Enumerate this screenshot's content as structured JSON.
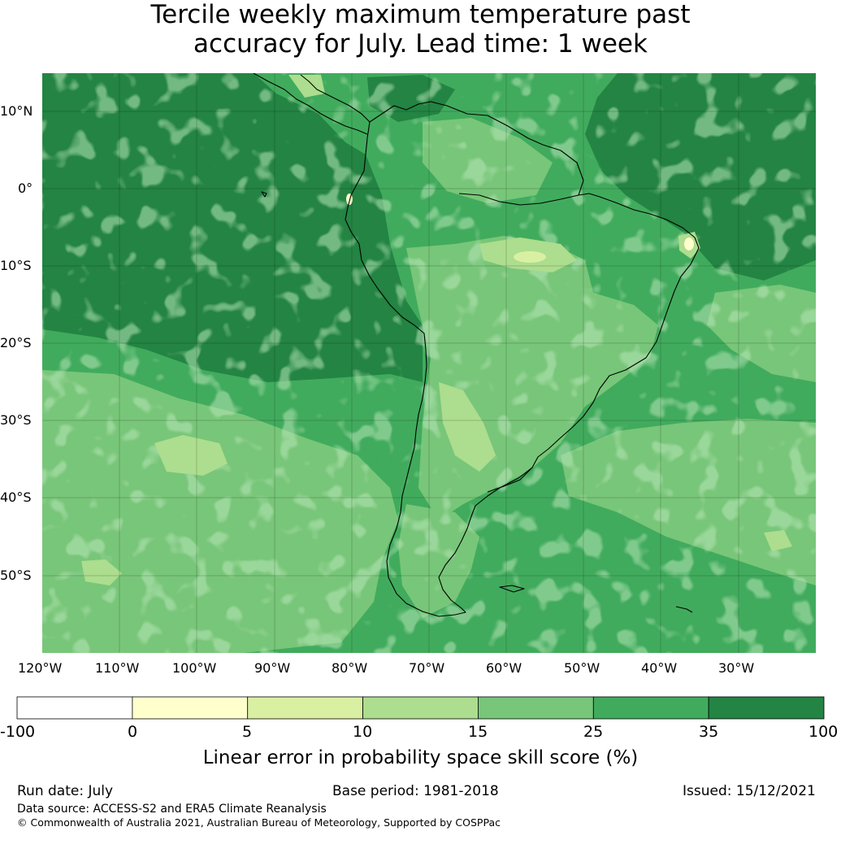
{
  "title": {
    "line1": "Tercile weekly maximum temperature past",
    "line2": "accuracy for July. Lead time: 1 week"
  },
  "map": {
    "region": "South America",
    "lat_labels": [
      "10°N",
      "0°",
      "10°S",
      "20°S",
      "30°S",
      "40°S",
      "50°S"
    ],
    "lon_labels": [
      "120°W",
      "110°W",
      "100°W",
      "90°W",
      "80°W",
      "70°W",
      "60°W",
      "50°W",
      "40°W",
      "30°W"
    ],
    "gridlines": true,
    "coastline_color": "#000000"
  },
  "colorbar": {
    "ticks": [
      "-100",
      "0",
      "5",
      "10",
      "15",
      "25",
      "35",
      "100"
    ],
    "colors": [
      "#ffffff",
      "#ffffcc",
      "#d9f0a3",
      "#addd8e",
      "#78c679",
      "#41ab5d",
      "#238443"
    ],
    "label": "Linear error in probability space skill score (%)"
  },
  "footer": {
    "run_date": "Run date: July",
    "base_period": "Base period: 1981-2018",
    "issued": "Issued: 15/12/2021",
    "data_source": "Data source: ACCESS-S2 and ERA5 Climate Reanalysis",
    "copyright": "© Commonwealth of Australia 2021, Australian Bureau of Meteorology, Supported by COSPPac"
  }
}
